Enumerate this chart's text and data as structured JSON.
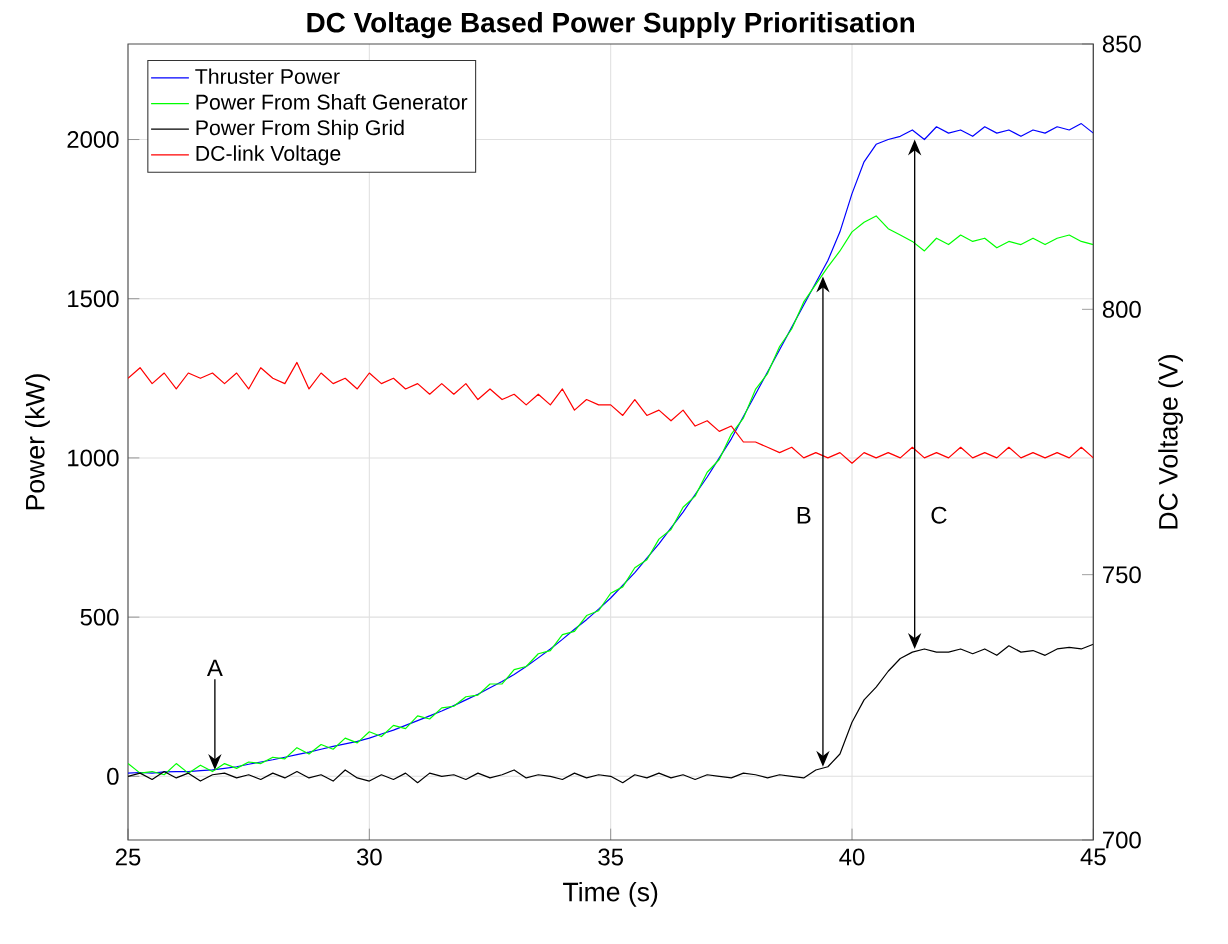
{
  "chart_data": {
    "type": "line",
    "title": "DC Voltage Based Power Supply Prioritisation",
    "xlabel": "Time (s)",
    "ylabel": "Power (kW)",
    "y2label": "DC Voltage (V)",
    "x": [
      25,
      25.25,
      25.5,
      25.75,
      26,
      26.25,
      26.5,
      26.75,
      27,
      27.25,
      27.5,
      27.75,
      28,
      28.25,
      28.5,
      28.75,
      29,
      29.25,
      29.5,
      29.75,
      30,
      30.25,
      30.5,
      30.75,
      31,
      31.25,
      31.5,
      31.75,
      32,
      32.25,
      32.5,
      32.75,
      33,
      33.25,
      33.5,
      33.75,
      34,
      34.25,
      34.5,
      34.75,
      35,
      35.25,
      35.5,
      35.75,
      36,
      36.25,
      36.5,
      36.75,
      37,
      37.25,
      37.5,
      37.75,
      38,
      38.25,
      38.5,
      38.75,
      39,
      39.25,
      39.5,
      39.75,
      40,
      40.25,
      40.5,
      40.75,
      41,
      41.25,
      41.5,
      41.75,
      42,
      42.25,
      42.5,
      42.75,
      43,
      43.25,
      43.5,
      43.75,
      44,
      44.25,
      44.5,
      44.75,
      45
    ],
    "series": [
      {
        "name": "Thruster Power",
        "color": "#0000ff",
        "values": [
          10,
          12,
          10,
          14,
          15,
          15,
          18,
          20,
          25,
          30,
          38,
          45,
          52,
          60,
          68,
          76,
          85,
          94,
          102,
          110,
          120,
          133,
          145,
          160,
          175,
          190,
          205,
          222,
          240,
          258,
          278,
          298,
          320,
          345,
          372,
          400,
          430,
          462,
          492,
          525,
          560,
          600,
          640,
          685,
          730,
          780,
          830,
          885,
          940,
          1000,
          1060,
          1130,
          1200,
          1270,
          1340,
          1410,
          1480,
          1550,
          1620,
          1710,
          1830,
          1930,
          1985,
          2000,
          2010,
          2030,
          2000,
          2040,
          2020,
          2030,
          2010,
          2040,
          2020,
          2030,
          2010,
          2030,
          2020,
          2040,
          2030,
          2050,
          2020
        ]
      },
      {
        "name": "Power From Shaft Generator",
        "color": "#00ff00",
        "values": [
          40,
          10,
          15,
          5,
          40,
          10,
          35,
          15,
          40,
          25,
          45,
          40,
          60,
          55,
          90,
          70,
          100,
          85,
          120,
          105,
          140,
          125,
          160,
          150,
          190,
          180,
          215,
          220,
          250,
          255,
          290,
          290,
          335,
          345,
          385,
          395,
          445,
          455,
          505,
          520,
          575,
          595,
          655,
          680,
          745,
          775,
          845,
          880,
          955,
          995,
          1075,
          1125,
          1215,
          1265,
          1350,
          1405,
          1490,
          1545,
          1600,
          1650,
          1710,
          1740,
          1760,
          1720,
          1700,
          1680,
          1650,
          1690,
          1670,
          1700,
          1680,
          1690,
          1660,
          1680,
          1670,
          1690,
          1670,
          1690,
          1700,
          1680,
          1670
        ]
      },
      {
        "name": "Power From Ship Grid",
        "color": "#000000",
        "values": [
          0,
          10,
          -10,
          15,
          -5,
          10,
          -15,
          5,
          10,
          -5,
          5,
          -10,
          10,
          -5,
          15,
          -5,
          5,
          -15,
          20,
          -5,
          -15,
          5,
          -10,
          10,
          -20,
          10,
          0,
          5,
          -10,
          10,
          -5,
          5,
          20,
          -5,
          5,
          0,
          -10,
          10,
          -5,
          5,
          0,
          -20,
          5,
          -5,
          10,
          -5,
          5,
          -10,
          5,
          0,
          -5,
          10,
          5,
          -5,
          5,
          0,
          -5,
          20,
          30,
          70,
          170,
          240,
          280,
          330,
          370,
          390,
          400,
          390,
          390,
          400,
          385,
          400,
          380,
          410,
          390,
          395,
          380,
          400,
          405,
          400,
          415
        ]
      },
      {
        "name": "DC-link Voltage",
        "color": "#ff0000",
        "axis": "y2",
        "values": [
          787,
          789,
          786,
          788,
          785,
          788,
          787,
          788,
          786,
          788,
          785,
          789,
          787,
          786,
          790,
          785,
          788,
          786,
          787,
          785,
          788,
          786,
          787,
          785,
          786,
          784,
          786,
          784,
          786,
          783,
          785,
          783,
          784,
          782,
          784,
          782,
          785,
          781,
          783,
          782,
          782,
          780,
          783,
          780,
          781,
          779,
          781,
          778,
          779,
          777,
          778,
          775,
          775,
          774,
          773,
          774,
          772,
          773,
          772,
          773,
          771,
          773,
          772,
          773,
          772,
          774,
          772,
          773,
          772,
          774,
          772,
          773,
          772,
          774,
          772,
          773,
          772,
          773,
          772,
          774,
          772
        ]
      }
    ],
    "xlim": [
      25,
      45
    ],
    "xticks": [
      25,
      30,
      35,
      40,
      45
    ],
    "ylim": [
      -200,
      2300
    ],
    "yticks": [
      0,
      500,
      1000,
      1500,
      2000
    ],
    "y2lim": [
      700,
      850
    ],
    "y2ticks": [
      700,
      750,
      800,
      850
    ],
    "grid": true,
    "legend": "top left",
    "annotations": [
      {
        "text": "A",
        "x": 26.8,
        "y": 20
      },
      "B",
      "C"
    ]
  }
}
